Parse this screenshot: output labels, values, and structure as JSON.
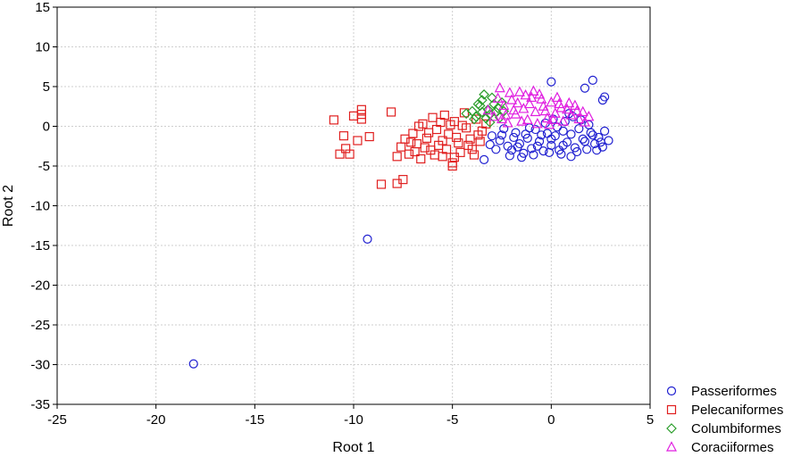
{
  "chart_data": {
    "type": "scatter",
    "title": "",
    "xlabel": "Root 1",
    "ylabel": "Root 2",
    "xlim": [
      -25,
      5
    ],
    "ylim": [
      -35,
      15
    ],
    "xticks": [
      -25,
      -20,
      -15,
      -10,
      -5,
      0,
      5
    ],
    "yticks": [
      15,
      10,
      5,
      0,
      -5,
      -10,
      -15,
      -20,
      -25,
      -30,
      -35
    ],
    "grid": true,
    "legend_position": "bottom-right-outside",
    "series": [
      {
        "name": "Passeriformes",
        "marker": "circle",
        "color": "#1f1fd0",
        "points": [
          [
            0.0,
            5.6
          ],
          [
            2.1,
            5.8
          ],
          [
            1.7,
            4.8
          ],
          [
            2.7,
            3.7
          ],
          [
            2.6,
            3.3
          ],
          [
            -3.4,
            -4.2
          ],
          [
            -9.3,
            -14.2
          ],
          [
            -18.1,
            -29.9
          ],
          [
            -3.0,
            -1.2
          ],
          [
            -2.6,
            -1.8
          ],
          [
            -2.2,
            -2.5
          ],
          [
            -2.0,
            -3.0
          ],
          [
            -1.8,
            -0.8
          ],
          [
            -1.6,
            -2.2
          ],
          [
            -1.4,
            -3.4
          ],
          [
            -1.2,
            -1.5
          ],
          [
            -1.0,
            -2.8
          ],
          [
            -0.8,
            -0.4
          ],
          [
            -0.6,
            -1.9
          ],
          [
            -0.4,
            -3.1
          ],
          [
            -0.2,
            -0.9
          ],
          [
            0.0,
            -2.4
          ],
          [
            0.2,
            -1.2
          ],
          [
            0.4,
            -3.0
          ],
          [
            0.6,
            -0.6
          ],
          [
            0.8,
            -2.0
          ],
          [
            1.0,
            -1.0
          ],
          [
            1.2,
            -2.7
          ],
          [
            1.4,
            -0.3
          ],
          [
            1.6,
            -1.6
          ],
          [
            1.8,
            -2.9
          ],
          [
            2.0,
            -0.8
          ],
          [
            2.2,
            -2.2
          ],
          [
            2.4,
            -1.4
          ],
          [
            2.6,
            -2.6
          ],
          [
            2.9,
            -1.8
          ],
          [
            -2.4,
            -0.3
          ],
          [
            -2.8,
            -2.9
          ],
          [
            -1.9,
            -1.4
          ],
          [
            -1.1,
            -0.2
          ],
          [
            -0.5,
            -1.1
          ],
          [
            0.3,
            -0.1
          ],
          [
            0.9,
            1.6
          ],
          [
            1.1,
            1.2
          ],
          [
            1.5,
            0.8
          ],
          [
            0.7,
            0.6
          ],
          [
            0.1,
            0.9
          ],
          [
            -0.3,
            0.4
          ],
          [
            -1.5,
            -3.9
          ],
          [
            -0.9,
            -3.6
          ],
          [
            0.5,
            -3.5
          ],
          [
            1.3,
            -3.2
          ],
          [
            -2.1,
            -3.7
          ],
          [
            2.3,
            -3.0
          ],
          [
            2.7,
            -0.6
          ],
          [
            1.9,
            0.2
          ],
          [
            -0.7,
            -2.5
          ],
          [
            -1.3,
            -1.0
          ],
          [
            0.0,
            -1.6
          ],
          [
            0.6,
            -2.4
          ],
          [
            1.7,
            -1.9
          ],
          [
            -2.5,
            -1.1
          ],
          [
            -3.1,
            -2.3
          ],
          [
            2.5,
            -2.0
          ],
          [
            1.0,
            -3.8
          ],
          [
            -0.1,
            -3.3
          ],
          [
            -1.7,
            -2.6
          ],
          [
            2.1,
            -1.1
          ]
        ]
      },
      {
        "name": "Pelecaniformes",
        "marker": "square",
        "color": "#e01f1f",
        "points": [
          [
            -11.0,
            0.8
          ],
          [
            -10.5,
            -1.2
          ],
          [
            -10.7,
            -3.5
          ],
          [
            -10.4,
            -2.8
          ],
          [
            -10.2,
            -3.5
          ],
          [
            -10.0,
            1.3
          ],
          [
            -9.8,
            -1.8
          ],
          [
            -9.6,
            2.1
          ],
          [
            -9.6,
            1.5
          ],
          [
            -9.6,
            0.9
          ],
          [
            -9.2,
            -1.3
          ],
          [
            -8.1,
            1.8
          ],
          [
            -8.6,
            -7.3
          ],
          [
            -7.8,
            -7.2
          ],
          [
            -7.5,
            -6.7
          ],
          [
            -7.8,
            -3.8
          ],
          [
            -7.6,
            -2.6
          ],
          [
            -7.4,
            -1.6
          ],
          [
            -7.2,
            -3.5
          ],
          [
            -7.0,
            -0.9
          ],
          [
            -6.8,
            -2.2
          ],
          [
            -6.6,
            -4.1
          ],
          [
            -6.5,
            0.3
          ],
          [
            -6.3,
            -1.5
          ],
          [
            -6.1,
            -3.0
          ],
          [
            -6.0,
            1.1
          ],
          [
            -5.8,
            -0.4
          ],
          [
            -5.7,
            -2.4
          ],
          [
            -5.5,
            -3.8
          ],
          [
            -5.4,
            1.4
          ],
          [
            -5.2,
            -1.0
          ],
          [
            -5.0,
            -4.6
          ],
          [
            -5.0,
            -5.0
          ],
          [
            -4.9,
            0.6
          ],
          [
            -4.7,
            -2.1
          ],
          [
            -4.6,
            -3.3
          ],
          [
            -4.4,
            1.7
          ],
          [
            -4.3,
            -0.2
          ],
          [
            -4.1,
            -1.6
          ],
          [
            -4.0,
            -2.9
          ],
          [
            -3.8,
            0.9
          ],
          [
            -3.7,
            -1.1
          ],
          [
            -3.5,
            -0.6
          ],
          [
            -3.3,
            0.3
          ],
          [
            -5.9,
            -3.6
          ],
          [
            -6.9,
            -3.2
          ],
          [
            -5.3,
            -2.9
          ],
          [
            -4.8,
            -1.4
          ],
          [
            -6.2,
            -0.8
          ],
          [
            -5.6,
            0.5
          ],
          [
            -4.5,
            0.1
          ],
          [
            -3.9,
            -3.6
          ],
          [
            -7.1,
            -2.0
          ],
          [
            -6.4,
            -2.7
          ],
          [
            -5.1,
            0.2
          ],
          [
            -4.2,
            -2.4
          ],
          [
            -3.6,
            -1.9
          ],
          [
            -5.5,
            -1.8
          ],
          [
            -6.7,
            0.0
          ],
          [
            -4.9,
            -3.9
          ]
        ]
      },
      {
        "name": "Columbiformes",
        "marker": "diamond",
        "color": "#2a9d2a",
        "points": [
          [
            -4.3,
            1.6
          ],
          [
            -4.0,
            1.9
          ],
          [
            -3.8,
            1.2
          ],
          [
            -3.6,
            2.6
          ],
          [
            -3.5,
            3.3
          ],
          [
            -3.4,
            4.0
          ],
          [
            -3.3,
            1.0
          ],
          [
            -3.2,
            2.1
          ],
          [
            -3.1,
            1.5
          ],
          [
            -3.0,
            3.6
          ],
          [
            -2.9,
            2.8
          ],
          [
            -2.8,
            1.8
          ],
          [
            -2.7,
            2.3
          ],
          [
            -2.6,
            1.1
          ],
          [
            -2.5,
            3.0
          ],
          [
            -3.7,
            2.8
          ],
          [
            -3.9,
            0.9
          ],
          [
            -3.1,
            0.5
          ],
          [
            -2.4,
            1.9
          ],
          [
            -3.5,
            1.8
          ]
        ]
      },
      {
        "name": "Coraciiformes",
        "marker": "triangle",
        "color": "#e01fe0",
        "points": [
          [
            -3.2,
            2.0
          ],
          [
            -2.9,
            1.2
          ],
          [
            -2.6,
            4.8
          ],
          [
            -2.4,
            2.6
          ],
          [
            -2.2,
            0.4
          ],
          [
            -2.0,
            3.3
          ],
          [
            -1.8,
            1.5
          ],
          [
            -1.6,
            4.3
          ],
          [
            -1.4,
            2.2
          ],
          [
            -1.2,
            0.8
          ],
          [
            -1.0,
            3.6
          ],
          [
            -0.8,
            1.8
          ],
          [
            -0.6,
            4.0
          ],
          [
            -0.4,
            2.5
          ],
          [
            -0.2,
            1.0
          ],
          [
            0.0,
            3.0
          ],
          [
            0.2,
            1.6
          ],
          [
            0.4,
            2.8
          ],
          [
            0.6,
            0.6
          ],
          [
            0.8,
            2.1
          ],
          [
            1.0,
            1.4
          ],
          [
            1.2,
            2.6
          ],
          [
            1.4,
            0.9
          ],
          [
            1.6,
            1.8
          ],
          [
            1.9,
            1.2
          ],
          [
            -2.3,
            1.4
          ],
          [
            -1.9,
            2.0
          ],
          [
            -1.5,
            0.6
          ],
          [
            -1.1,
            2.8
          ],
          [
            -0.7,
            0.3
          ],
          [
            -0.3,
            1.9
          ],
          [
            0.1,
            0.8
          ],
          [
            0.5,
            2.3
          ],
          [
            -1.3,
            3.9
          ],
          [
            -0.9,
            4.4
          ],
          [
            -2.1,
            4.2
          ],
          [
            -0.5,
            3.4
          ],
          [
            0.3,
            3.6
          ],
          [
            -1.7,
            2.9
          ],
          [
            -2.7,
            3.5
          ],
          [
            0.9,
            2.9
          ],
          [
            1.3,
            1.9
          ],
          [
            -0.1,
            0.2
          ],
          [
            -2.5,
            0.9
          ],
          [
            1.7,
            0.5
          ]
        ]
      }
    ]
  }
}
